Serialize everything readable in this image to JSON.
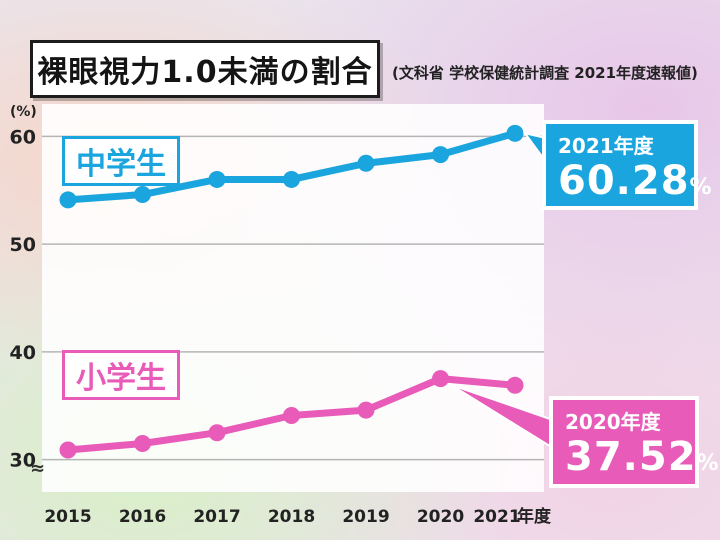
{
  "title": "裸眼視力1.0未満の割合",
  "source": "(文科省 学校保健統計調査 2021年度速報値)",
  "y_unit": "(%)",
  "axis_break_symbol": "≈",
  "x_suffix": "年度",
  "colors": {
    "jhs": "#1aa5de",
    "es": "#e85bb8"
  },
  "callouts": {
    "jhs": {
      "year": "2021年度",
      "value": "60.28",
      "unit": "%"
    },
    "es": {
      "year": "2020年度",
      "value": "37.52",
      "unit": "%"
    }
  },
  "chart_data": {
    "type": "line",
    "x": [
      "2015",
      "2016",
      "2017",
      "2018",
      "2019",
      "2020",
      "2021"
    ],
    "yticks": [
      30,
      40,
      50,
      60
    ],
    "ylim": [
      27,
      63
    ],
    "grid": true,
    "series": [
      {
        "name": "中学生",
        "values": [
          54.1,
          54.6,
          56.0,
          56.0,
          57.5,
          58.3,
          60.28
        ]
      },
      {
        "name": "小学生",
        "values": [
          30.9,
          31.5,
          32.5,
          34.1,
          34.6,
          37.52,
          36.9
        ]
      }
    ]
  }
}
